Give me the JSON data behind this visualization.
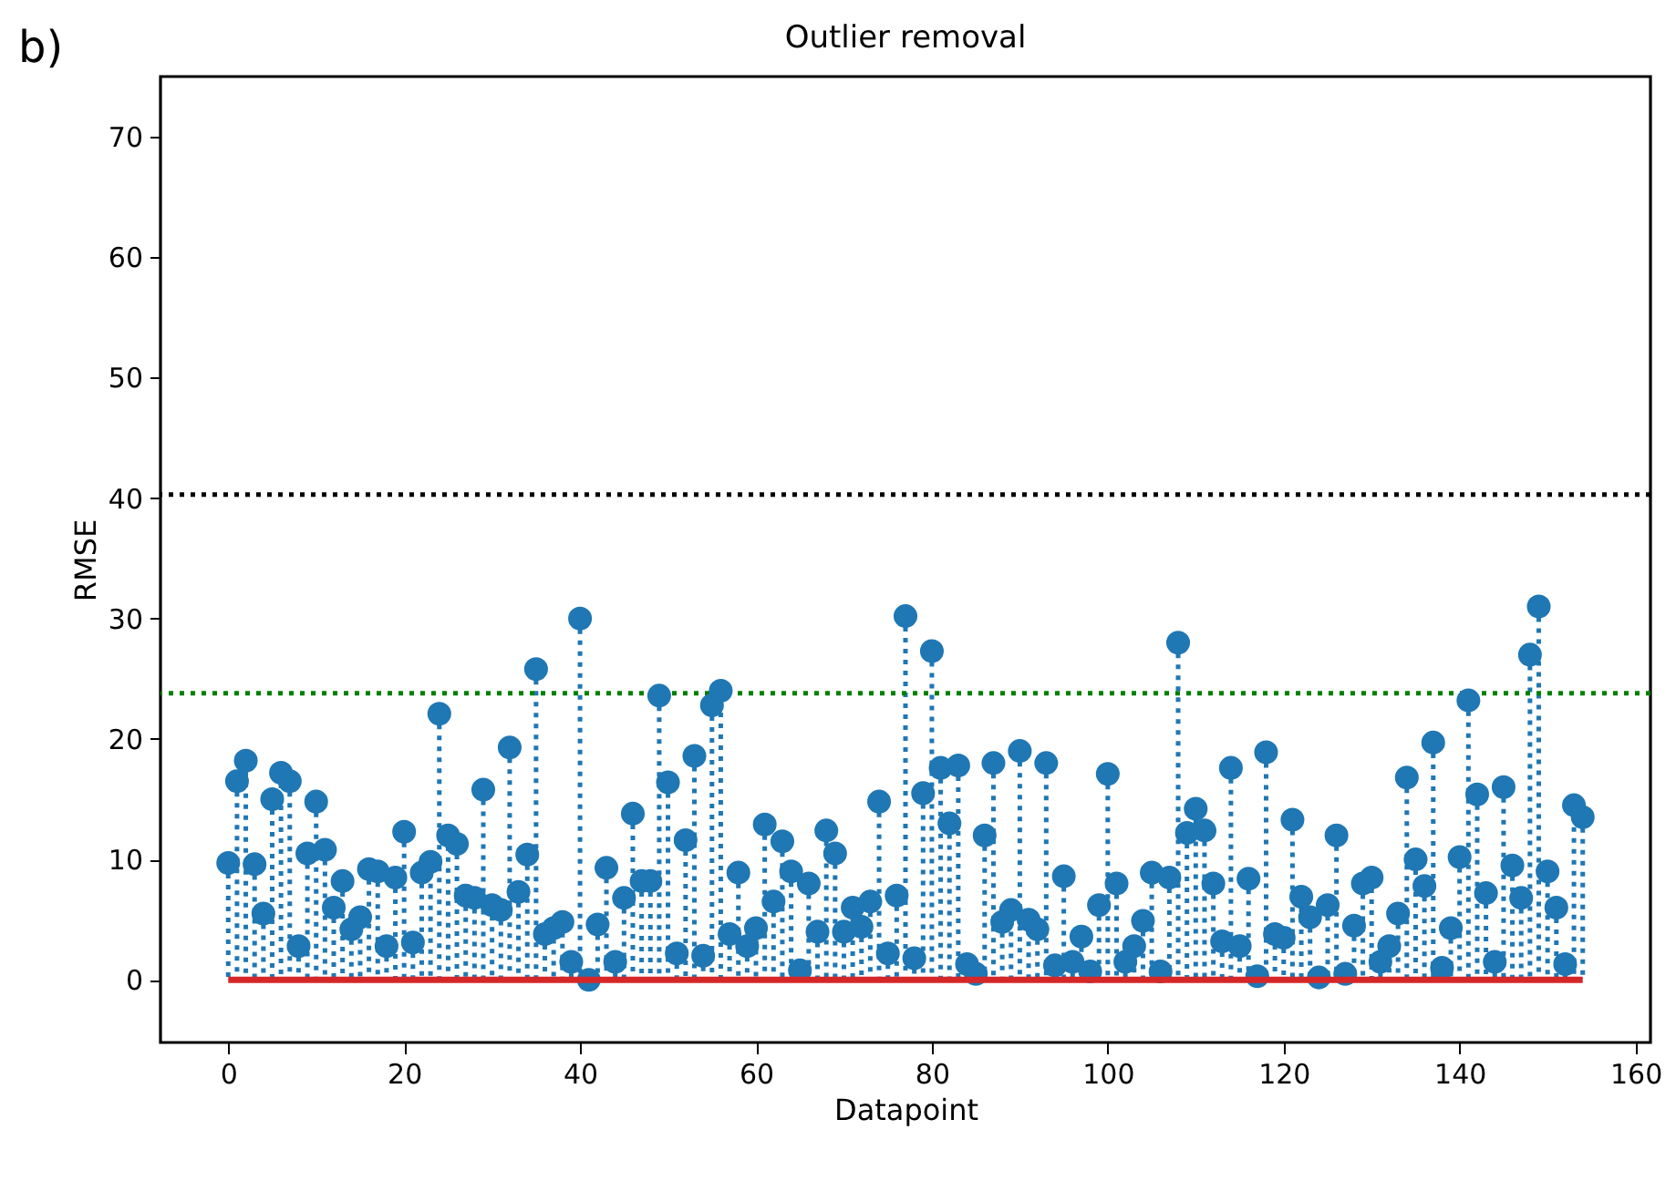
{
  "chart_data": {
    "type": "lollipop",
    "title": "Outlier removal",
    "xlabel": "Datapoint",
    "ylabel": "RMSE",
    "annotations": [
      "b)"
    ],
    "x": [
      0,
      1,
      2,
      3,
      4,
      5,
      6,
      7,
      8,
      9,
      10,
      11,
      12,
      13,
      14,
      15,
      16,
      17,
      18,
      19,
      20,
      21,
      22,
      23,
      24,
      25,
      26,
      27,
      28,
      29,
      30,
      31,
      32,
      33,
      34,
      35,
      36,
      37,
      38,
      39,
      40,
      41,
      42,
      43,
      44,
      45,
      46,
      47,
      48,
      49,
      50,
      51,
      52,
      53,
      54,
      55,
      56,
      57,
      58,
      59,
      60,
      61,
      62,
      63,
      64,
      65,
      66,
      67,
      68,
      69,
      70,
      71,
      72,
      73,
      74,
      75,
      76,
      77,
      78,
      79,
      80,
      81,
      82,
      83,
      84,
      85,
      86,
      87,
      88,
      89,
      90,
      91,
      92,
      93,
      94,
      95,
      96,
      97,
      98,
      99,
      100,
      101,
      102,
      103,
      104,
      105,
      106,
      107,
      108,
      109,
      110,
      111,
      112,
      113,
      114,
      115,
      116,
      117,
      118,
      119,
      120,
      121,
      122,
      123,
      124,
      125,
      126,
      127,
      128,
      129,
      130,
      131,
      132,
      133,
      134,
      135,
      136,
      137,
      138,
      139,
      140,
      141,
      142,
      143,
      144,
      145,
      146,
      147,
      148,
      149,
      150,
      151,
      152,
      153,
      154
    ],
    "series": [
      {
        "color": "#1f77b4",
        "values": [
          9.7,
          16.5,
          18.2,
          9.6,
          5.5,
          15,
          17.2,
          16.5,
          2.8,
          10.5,
          14.8,
          10.8,
          6,
          8.2,
          4.2,
          5.2,
          9.2,
          9,
          2.8,
          8.5,
          12.3,
          3.1,
          8.9,
          9.8,
          22.1,
          12,
          11.3,
          7,
          6.8,
          15.8,
          6.2,
          5.8,
          19.3,
          7.3,
          10.4,
          25.8,
          3.8,
          4.3,
          4.8,
          1.5,
          30,
          0,
          4.6,
          9.3,
          1.5,
          6.8,
          13.8,
          8.2,
          8.2,
          23.6,
          16.4,
          2.2,
          11.6,
          18.6,
          2,
          22.8,
          24,
          3.8,
          8.9,
          2.8,
          4.3,
          12.9,
          6.5,
          11.5,
          9,
          0.8,
          8,
          4,
          12.4,
          10.5,
          4,
          6,
          4.4,
          6.5,
          14.8,
          2.2,
          7,
          30.2,
          1.8,
          15.5,
          27.3,
          17.6,
          13,
          17.8,
          1.3,
          0.5,
          12,
          18,
          4.8,
          5.8,
          19,
          5,
          4.2,
          18,
          1.2,
          8.6,
          1.5,
          3.6,
          0.7,
          6.2,
          17.1,
          8,
          1.5,
          2.8,
          4.9,
          8.9,
          0.7,
          8.5,
          28,
          12.2,
          14.2,
          12.4,
          8,
          3.2,
          17.6,
          2.8,
          8.4,
          0.3,
          18.9,
          3.8,
          3.5,
          13.3,
          6.9,
          5.2,
          0.2,
          6.2,
          12,
          0.5,
          4.5,
          8,
          8.5,
          1.5,
          2.8,
          5.5,
          16.8,
          10,
          7.8,
          19.7,
          1,
          4.3,
          10.2,
          23.2,
          15.4,
          7.2,
          1.5,
          16,
          9.5,
          6.8,
          27,
          31,
          9,
          6,
          1.3,
          14.5,
          13.5
        ]
      }
    ],
    "marker": "circle",
    "line_style": "dotted",
    "xlim": [
      -7.7,
      161.7
    ],
    "xticks": [
      0,
      20,
      40,
      60,
      80,
      100,
      120,
      140,
      160
    ],
    "ylim": [
      -5.2,
      75
    ],
    "yticks": [
      0,
      10,
      20,
      30,
      40,
      50,
      60,
      70
    ],
    "ref_lines": [
      {
        "axis": "y",
        "value": 40.3,
        "color": "#000000",
        "line_style": "dotted"
      },
      {
        "axis": "y",
        "value": 23.8,
        "color": "#008000",
        "line_style": "dotted"
      },
      {
        "axis": "y",
        "value": 0,
        "color": "#d62728",
        "line_style": "solid"
      }
    ]
  }
}
